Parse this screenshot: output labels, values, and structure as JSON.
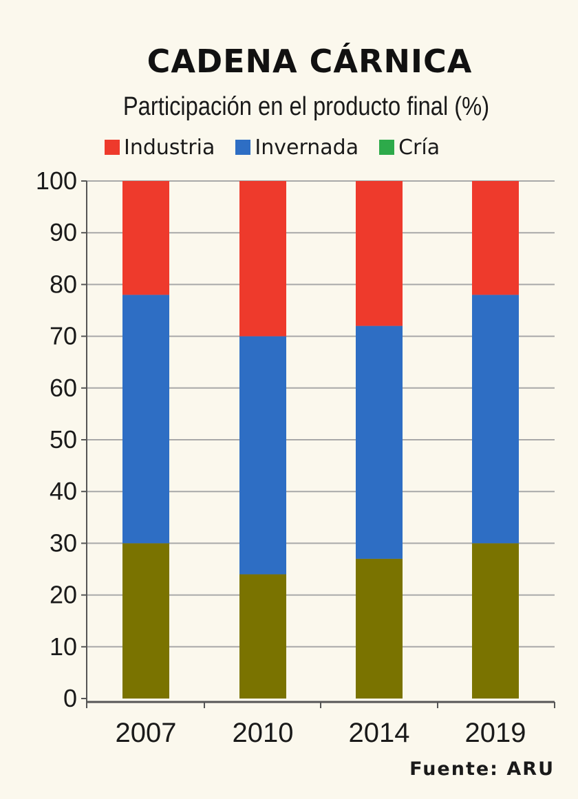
{
  "chart_data": {
    "type": "bar",
    "stacked": true,
    "title": "CADENA CÁRNICA",
    "subtitle": "Participación en el producto final (%)",
    "xlabel": "",
    "ylabel": "",
    "ylim": [
      0,
      100
    ],
    "yticks": [
      "0",
      "10",
      "20",
      "30",
      "40",
      "50",
      "60",
      "70",
      "80",
      "90",
      "100"
    ],
    "grid": true,
    "legend_position": "top",
    "categories": [
      "2007",
      "2010",
      "2014",
      "2019"
    ],
    "series": [
      {
        "name": "Cría",
        "color": "#7a7300",
        "legend_color": "#2daa4a",
        "values": [
          30,
          24,
          27,
          30
        ]
      },
      {
        "name": "Invernada",
        "color": "#2e6ec4",
        "legend_color": "#2e6ec4",
        "values": [
          48,
          46,
          45,
          48
        ]
      },
      {
        "name": "Industria",
        "color": "#ee3a2c",
        "legend_color": "#ee3a2c",
        "values": [
          22,
          30,
          28,
          22
        ]
      }
    ],
    "legend": [
      "Industria",
      "Invernada",
      "Cría"
    ],
    "source": "Fuente:  ARU"
  }
}
